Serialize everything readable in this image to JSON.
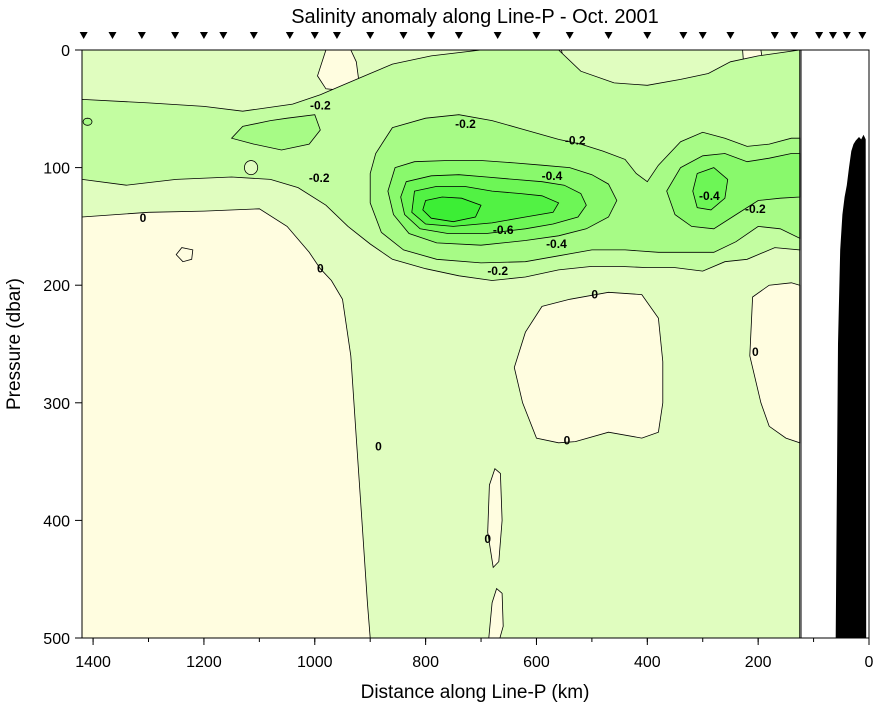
{
  "chart_data": {
    "type": "heatmap",
    "title": "Salinity anomaly along Line-P - Oct. 2001",
    "xlabel": "Distance along Line-P (km)",
    "ylabel": "Pressure (dbar)",
    "xlim": [
      1420,
      0
    ],
    "ylim": [
      0,
      500
    ],
    "y_inverted": true,
    "x_ticks": [
      "1400",
      "1200",
      "1000",
      "800",
      "600",
      "400",
      "200",
      "0"
    ],
    "x_tick_values": [
      1400,
      1200,
      1000,
      800,
      600,
      400,
      200,
      0
    ],
    "y_ticks": [
      "0",
      "100",
      "200",
      "300",
      "400",
      "500"
    ],
    "y_tick_values": [
      0,
      100,
      200,
      300,
      400,
      500
    ],
    "station_positions_km": [
      1417,
      1365,
      1312,
      1252,
      1200,
      1165,
      1110,
      1045,
      1000,
      960,
      900,
      840,
      790,
      740,
      670,
      600,
      540,
      470,
      400,
      335,
      300,
      250,
      170,
      135,
      90,
      65,
      40,
      12
    ],
    "data_end_km": 125,
    "contour_interval": 0.1,
    "min_anomaly_approx": -0.7,
    "max_anomaly_approx": 0.0,
    "contour_labels": [
      {
        "text": "-0.2",
        "x": 990,
        "y": 47
      },
      {
        "text": "-0.2",
        "x": 728,
        "y": 63
      },
      {
        "text": "-0.2",
        "x": 530,
        "y": 77
      },
      {
        "text": "-0.2",
        "x": 992,
        "y": 109
      },
      {
        "text": "-0.4",
        "x": 572,
        "y": 107
      },
      {
        "text": "-0.4",
        "x": 288,
        "y": 124
      },
      {
        "text": "-0.2",
        "x": 205,
        "y": 135
      },
      {
        "text": "-0.6",
        "x": 660,
        "y": 153
      },
      {
        "text": "-0.4",
        "x": 564,
        "y": 165
      },
      {
        "text": "-0.2",
        "x": 670,
        "y": 188
      },
      {
        "text": "0",
        "x": 1310,
        "y": 143
      },
      {
        "text": "0",
        "x": 990,
        "y": 186
      },
      {
        "text": "0",
        "x": 495,
        "y": 208
      },
      {
        "text": "0",
        "x": 205,
        "y": 257
      },
      {
        "text": "0",
        "x": 885,
        "y": 337
      },
      {
        "text": "0",
        "x": 545,
        "y": 332
      },
      {
        "text": "0",
        "x": 688,
        "y": 416
      }
    ],
    "colors": {
      "positive": "#fffde0",
      "neg_0_1": "#e0fdbf",
      "neg_0_2": "#c3fda1",
      "neg_0_3": "#a7fb86",
      "neg_0_4": "#89f96c",
      "neg_0_5": "#6df656",
      "neg_0_6": "#52f244",
      "neg_0_7": "#3cee35",
      "bathymetry": "#000000"
    }
  }
}
